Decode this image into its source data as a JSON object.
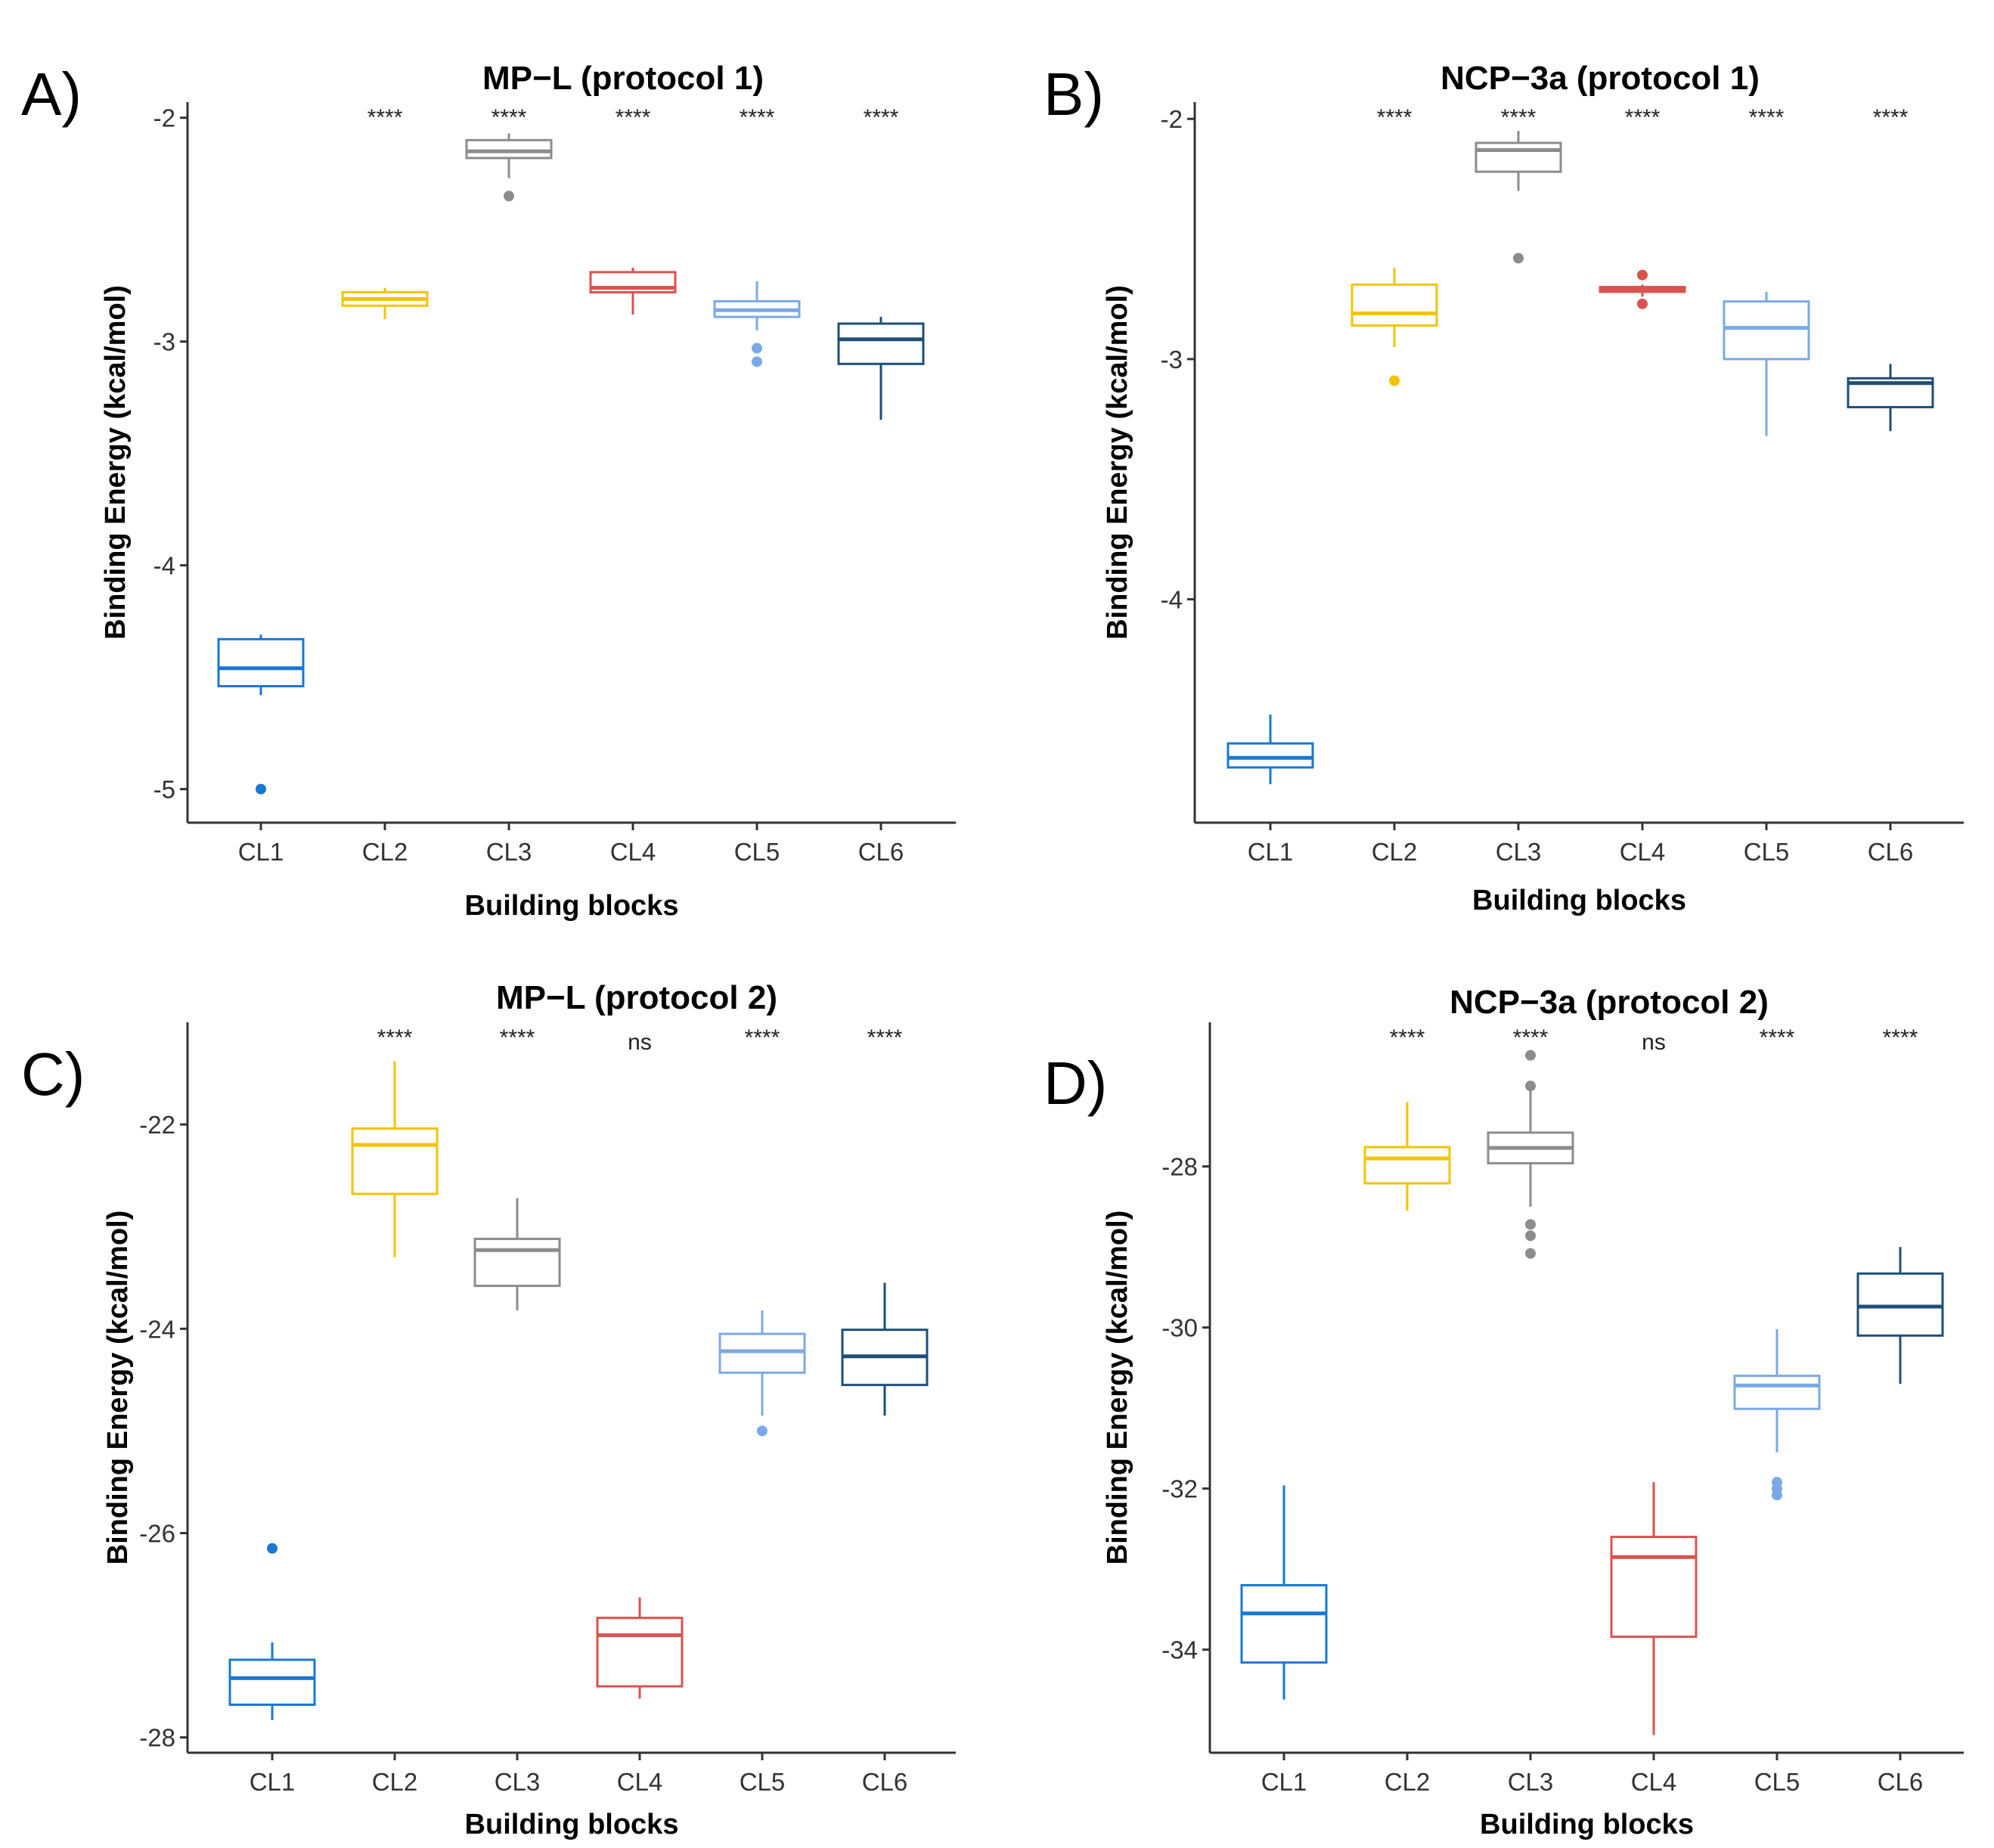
{
  "chart_data": [
    {
      "panel": "A)",
      "type": "boxplot",
      "title": "MP−L (protocol 1)",
      "xlabel": "Building blocks",
      "ylabel": "Binding Energy (kcal/mol)",
      "ylim": [
        -5.15,
        -1.93
      ],
      "yticks": [
        -5,
        -4,
        -3,
        -2
      ],
      "categories": [
        "CL1",
        "CL2",
        "CL3",
        "CL4",
        "CL5",
        "CL6"
      ],
      "significance": [
        "",
        "****",
        "****",
        "****",
        "****",
        "****"
      ],
      "boxes": [
        {
          "min": -4.58,
          "q1": -4.54,
          "median": -4.46,
          "q3": -4.33,
          "max": -4.31,
          "outliers": [
            -5.0
          ]
        },
        {
          "min": -2.9,
          "q1": -2.84,
          "median": -2.81,
          "q3": -2.78,
          "max": -2.76,
          "outliers": []
        },
        {
          "min": -2.27,
          "q1": -2.18,
          "median": -2.15,
          "q3": -2.1,
          "max": -2.07,
          "outliers": [
            -2.35
          ]
        },
        {
          "min": -2.88,
          "q1": -2.78,
          "median": -2.76,
          "q3": -2.69,
          "max": -2.67,
          "outliers": []
        },
        {
          "min": -2.95,
          "q1": -2.89,
          "median": -2.86,
          "q3": -2.82,
          "max": -2.73,
          "outliers": [
            -3.03,
            -3.09
          ]
        },
        {
          "min": -3.35,
          "q1": -3.1,
          "median": -2.99,
          "q3": -2.92,
          "max": -2.89,
          "outliers": []
        }
      ]
    },
    {
      "panel": "B)",
      "type": "boxplot",
      "title": "NCP−3a (protocol 1)",
      "xlabel": "Building blocks",
      "ylabel": "Binding Energy (kcal/mol)",
      "ylim": [
        -4.93,
        -1.93
      ],
      "yticks": [
        -4,
        -3,
        -2
      ],
      "categories": [
        "CL1",
        "CL2",
        "CL3",
        "CL4",
        "CL5",
        "CL6"
      ],
      "significance": [
        "",
        "****",
        "****",
        "****",
        "****",
        "****"
      ],
      "boxes": [
        {
          "min": -4.77,
          "q1": -4.7,
          "median": -4.66,
          "q3": -4.6,
          "max": -4.48,
          "outliers": []
        },
        {
          "min": -2.95,
          "q1": -2.86,
          "median": -2.81,
          "q3": -2.69,
          "max": -2.62,
          "outliers": [
            -3.09
          ]
        },
        {
          "min": -2.3,
          "q1": -2.22,
          "median": -2.13,
          "q3": -2.1,
          "max": -2.05,
          "outliers": [
            -2.58
          ]
        },
        {
          "min": -2.74,
          "q1": -2.72,
          "median": -2.71,
          "q3": -2.7,
          "max": -2.69,
          "outliers": [
            -2.65,
            -2.77
          ]
        },
        {
          "min": -3.32,
          "q1": -3.0,
          "median": -2.87,
          "q3": -2.76,
          "max": -2.72,
          "outliers": []
        },
        {
          "min": -3.3,
          "q1": -3.2,
          "median": -3.1,
          "q3": -3.08,
          "max": -3.02,
          "outliers": []
        }
      ]
    },
    {
      "panel": "C)",
      "type": "boxplot",
      "title": "MP−L (protocol 2)",
      "xlabel": "Building blocks",
      "ylabel": "Binding Energy (kcal/mol)",
      "ylim": [
        -28.15,
        -21.0
      ],
      "yticks": [
        -28,
        -26,
        -24,
        -22
      ],
      "categories": [
        "CL1",
        "CL2",
        "CL3",
        "CL4",
        "CL5",
        "CL6"
      ],
      "significance": [
        "",
        "****",
        "****",
        "ns",
        "****",
        "****"
      ],
      "boxes": [
        {
          "min": -27.83,
          "q1": -27.68,
          "median": -27.42,
          "q3": -27.24,
          "max": -27.07,
          "outliers": [
            -26.15
          ]
        },
        {
          "min": -23.3,
          "q1": -22.68,
          "median": -22.2,
          "q3": -22.04,
          "max": -21.38,
          "outliers": []
        },
        {
          "min": -23.82,
          "q1": -23.58,
          "median": -23.23,
          "q3": -23.12,
          "max": -22.72,
          "outliers": []
        },
        {
          "min": -27.62,
          "q1": -27.5,
          "median": -27.0,
          "q3": -26.83,
          "max": -26.63,
          "outliers": []
        },
        {
          "min": -24.85,
          "q1": -24.43,
          "median": -24.22,
          "q3": -24.05,
          "max": -23.82,
          "outliers": [
            -25.0
          ]
        },
        {
          "min": -24.85,
          "q1": -24.55,
          "median": -24.27,
          "q3": -24.01,
          "max": -23.55,
          "outliers": []
        }
      ]
    },
    {
      "panel": "D)",
      "type": "boxplot",
      "title": "NCP−3a (protocol 2)",
      "xlabel": "Building blocks",
      "ylabel": "Binding Energy (kcal/mol)",
      "ylim": [
        -35.28,
        -26.21
      ],
      "yticks": [
        -34,
        -32,
        -30,
        -28
      ],
      "categories": [
        "CL1",
        "CL2",
        "CL3",
        "CL4",
        "CL5",
        "CL6"
      ],
      "significance": [
        "",
        "****",
        "****",
        "ns",
        "****",
        "****"
      ],
      "boxes": [
        {
          "min": -34.62,
          "q1": -34.16,
          "median": -33.55,
          "q3": -33.2,
          "max": -31.96,
          "outliers": []
        },
        {
          "min": -28.55,
          "q1": -28.21,
          "median": -27.9,
          "q3": -27.76,
          "max": -27.2,
          "outliers": []
        },
        {
          "min": -28.5,
          "q1": -27.96,
          "median": -27.77,
          "q3": -27.58,
          "max": -27.05,
          "outliers": [
            -26.62,
            -27.0,
            -28.72,
            -28.86,
            -29.08
          ]
        },
        {
          "min": -35.06,
          "q1": -33.84,
          "median": -32.85,
          "q3": -32.6,
          "max": -31.92,
          "outliers": []
        },
        {
          "min": -31.55,
          "q1": -31.01,
          "median": -30.72,
          "q3": -30.6,
          "max": -30.02,
          "outliers": [
            -31.92,
            -32.0,
            -32.08
          ]
        },
        {
          "min": -30.7,
          "q1": -30.1,
          "median": -29.74,
          "q3": -29.33,
          "max": -29.0,
          "outliers": []
        }
      ]
    }
  ],
  "colors": [
    "#1878d4",
    "#f2c500",
    "#8c8c8c",
    "#d9534f",
    "#7aaae6",
    "#1f4e79"
  ]
}
